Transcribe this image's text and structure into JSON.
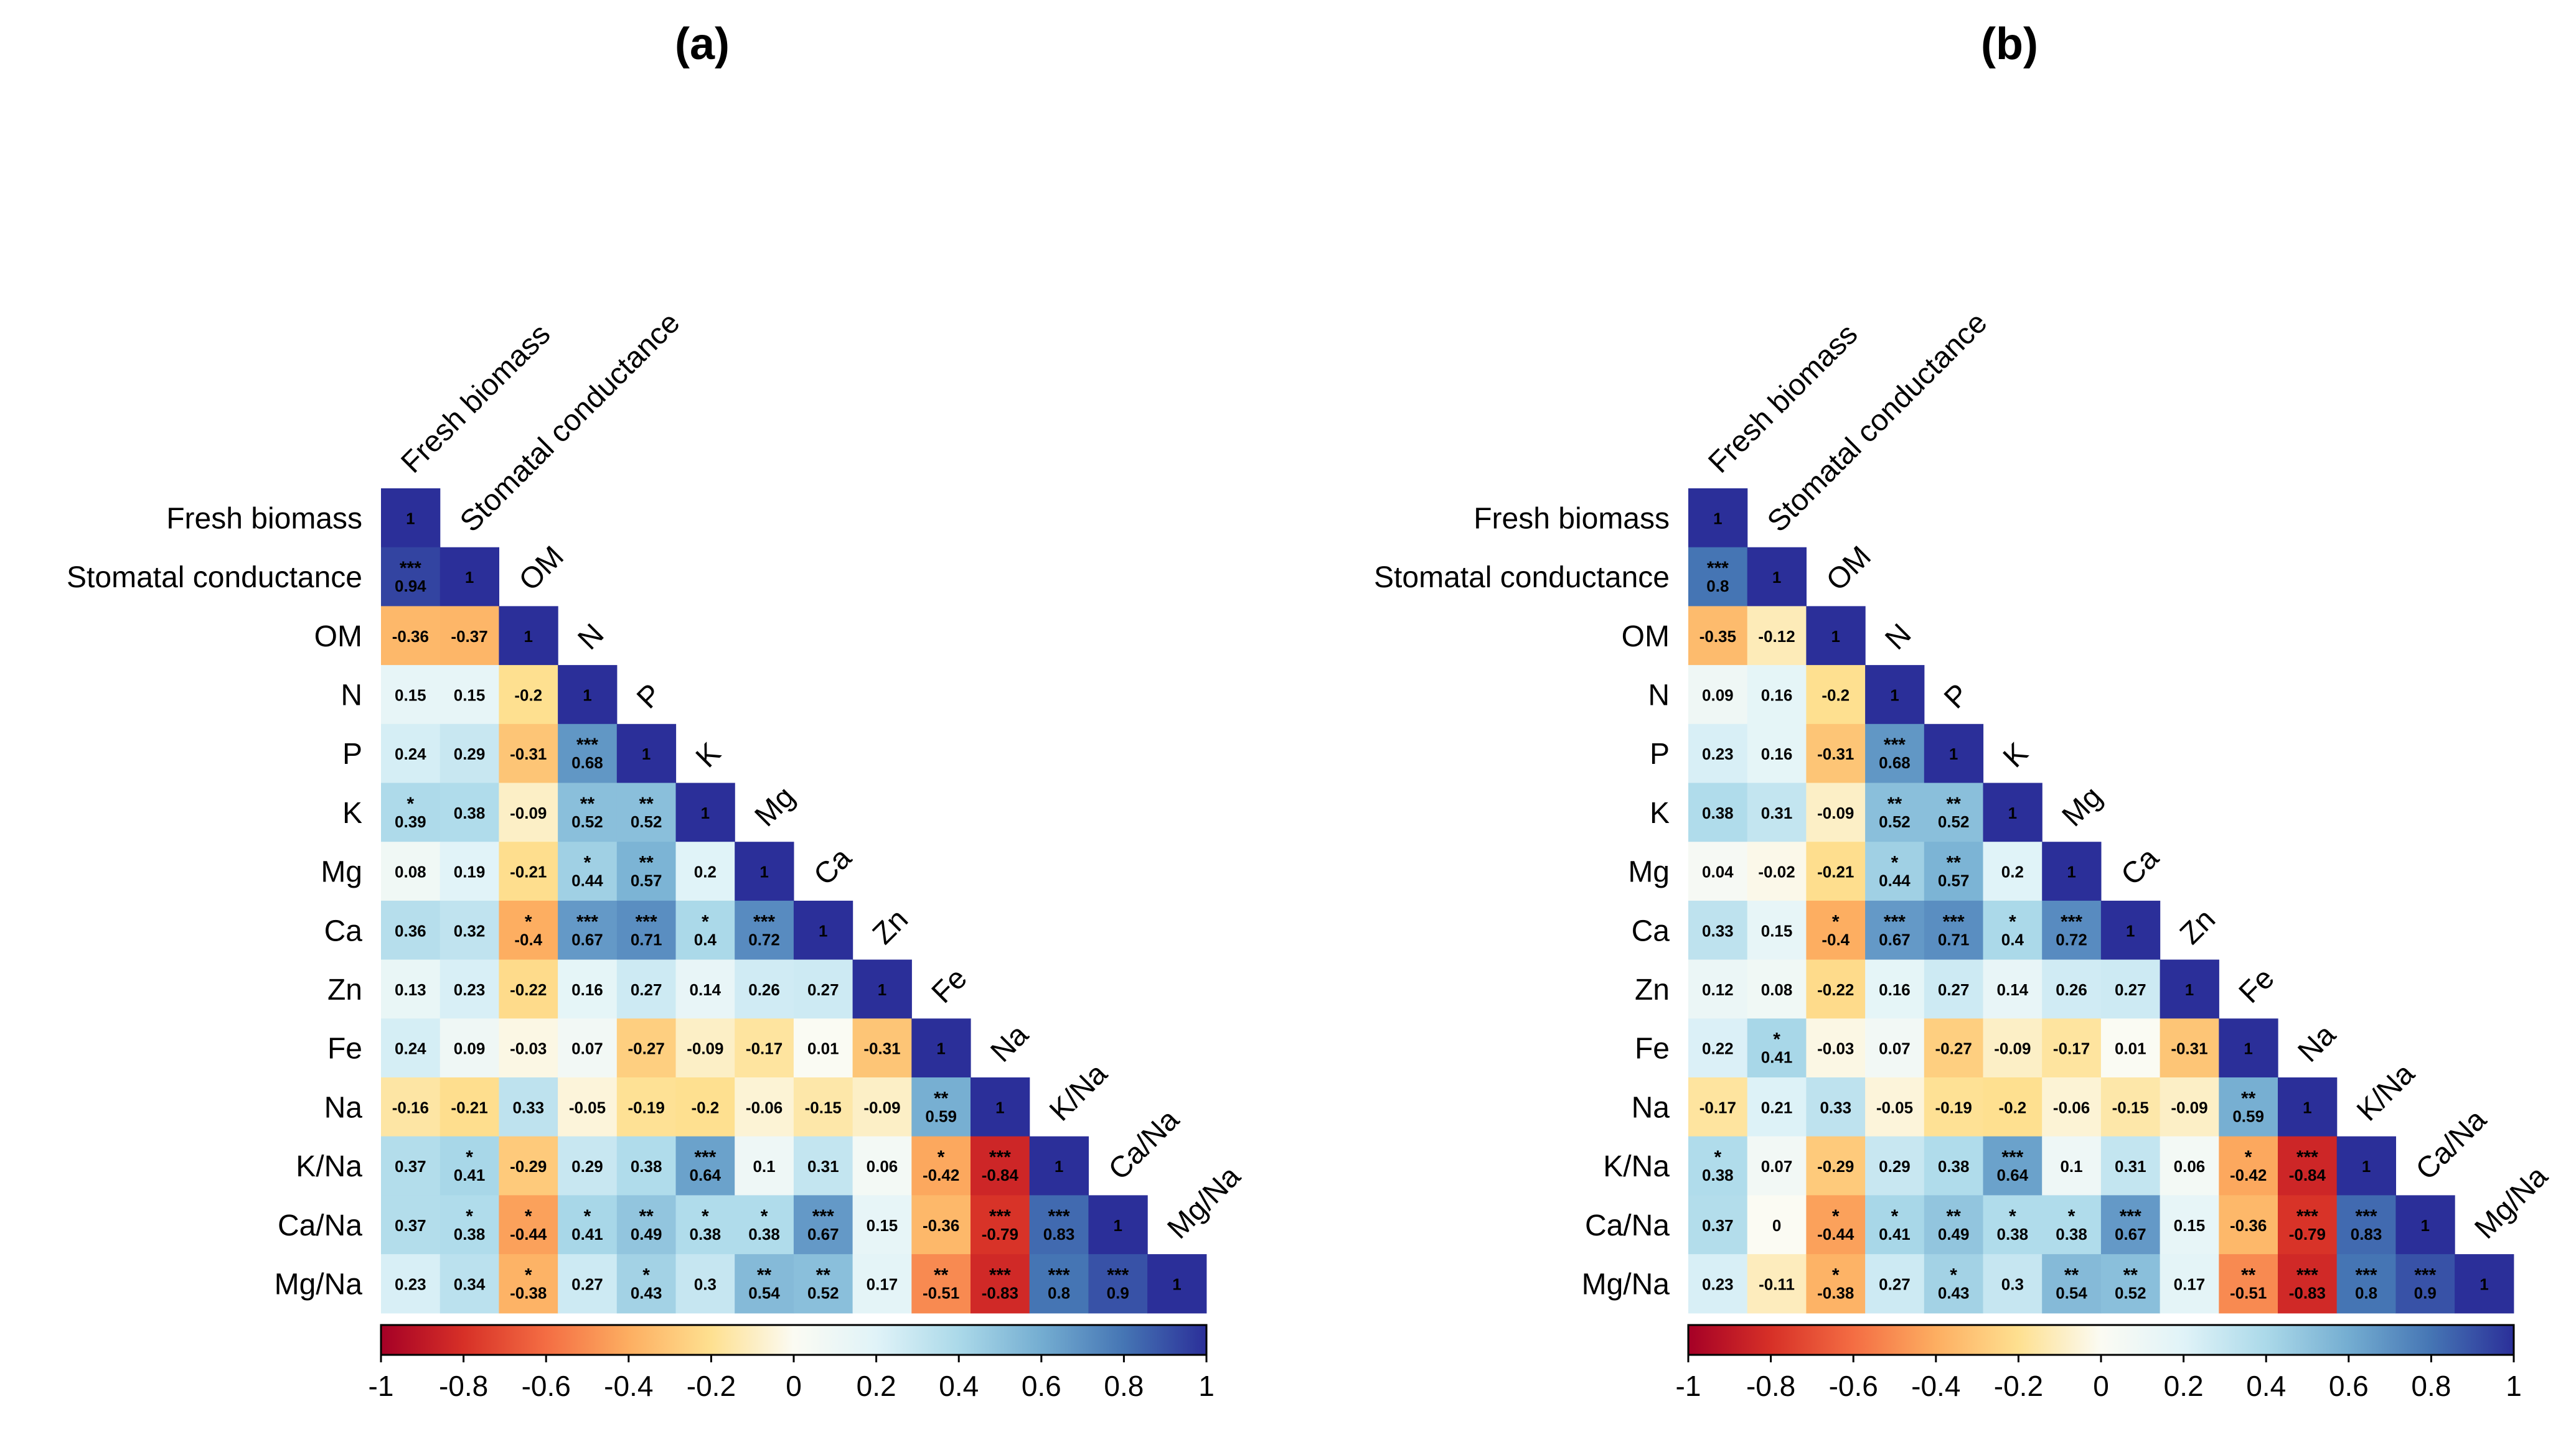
{
  "chart_data": [
    {
      "type": "heatmap",
      "title": "(a)",
      "variables": [
        "Fresh biomass",
        "Stomatal conductance",
        "OM",
        "N",
        "P",
        "K",
        "Mg",
        "Ca",
        "Zn",
        "Fe",
        "Na",
        "K/Na",
        "Ca/Na",
        "Mg/Na"
      ],
      "values": [
        [
          "1"
        ],
        [
          "0.94",
          "1"
        ],
        [
          "-0.36",
          "-0.37",
          "1"
        ],
        [
          "0.15",
          "0.15",
          "-0.2",
          "1"
        ],
        [
          "0.24",
          "0.29",
          "-0.31",
          "0.68",
          "1"
        ],
        [
          "0.39",
          "0.38",
          "-0.09",
          "0.52",
          "0.52",
          "1"
        ],
        [
          "0.08",
          "0.19",
          "-0.21",
          "0.44",
          "0.57",
          "0.2",
          "1"
        ],
        [
          "0.36",
          "0.32",
          "-0.4",
          "0.67",
          "0.71",
          "0.4",
          "0.72",
          "1"
        ],
        [
          "0.13",
          "0.23",
          "-0.22",
          "0.16",
          "0.27",
          "0.14",
          "0.26",
          "0.27",
          "1"
        ],
        [
          "0.24",
          "0.09",
          "-0.03",
          "0.07",
          "-0.27",
          "-0.09",
          "-0.17",
          "0.01",
          "-0.31",
          "1"
        ],
        [
          "-0.16",
          "-0.21",
          "0.33",
          "-0.05",
          "-0.19",
          "-0.2",
          "-0.06",
          "-0.15",
          "-0.09",
          "0.59",
          "1"
        ],
        [
          "0.37",
          "0.41",
          "-0.29",
          "0.29",
          "0.38",
          "0.64",
          "0.1",
          "0.31",
          "0.06",
          "-0.42",
          "-0.84",
          "1"
        ],
        [
          "0.37",
          "0.38",
          "-0.44",
          "0.41",
          "0.49",
          "0.38",
          "0.38",
          "0.67",
          "0.15",
          "-0.36",
          "-0.79",
          "0.83",
          "1"
        ],
        [
          "0.23",
          "0.34",
          "-0.38",
          "0.27",
          "0.43",
          "0.3",
          "0.54",
          "0.52",
          "0.17",
          "-0.51",
          "-0.83",
          "0.8",
          "0.9",
          "1"
        ]
      ],
      "significance": [
        [
          ""
        ],
        [
          "***",
          ""
        ],
        [
          "",
          "",
          ""
        ],
        [
          "",
          "",
          "",
          ""
        ],
        [
          "",
          "",
          "",
          "***",
          ""
        ],
        [
          "*",
          "",
          "",
          "**",
          "**",
          ""
        ],
        [
          "",
          "",
          "",
          "*",
          "**",
          "",
          ""
        ],
        [
          "",
          "",
          "*",
          "***",
          "***",
          "*",
          "***",
          ""
        ],
        [
          "",
          "",
          "",
          "",
          "",
          "",
          "",
          "",
          ""
        ],
        [
          "",
          "",
          "",
          "",
          "",
          "",
          "",
          "",
          "",
          ""
        ],
        [
          "",
          "",
          "",
          "",
          "",
          "",
          "",
          "",
          "",
          "**",
          ""
        ],
        [
          "",
          "*",
          "",
          "",
          "",
          "***",
          "",
          "",
          "",
          "*",
          "***",
          ""
        ],
        [
          "",
          "*",
          "*",
          "*",
          "**",
          "*",
          "*",
          "***",
          "",
          "",
          "***",
          "***",
          ""
        ],
        [
          "",
          "",
          "*",
          "",
          "*",
          "",
          "**",
          "**",
          "",
          "**",
          "***",
          "***",
          "***",
          ""
        ]
      ],
      "colorbar": {
        "range": [
          -1,
          1
        ],
        "ticks": [
          "-1",
          "-0.8",
          "-0.6",
          "-0.4",
          "-0.2",
          "0",
          "0.2",
          "0.4",
          "0.6",
          "0.8",
          "1"
        ]
      }
    },
    {
      "type": "heatmap",
      "title": "(b)",
      "variables": [
        "Fresh biomass",
        "Stomatal conductance",
        "OM",
        "N",
        "P",
        "K",
        "Mg",
        "Ca",
        "Zn",
        "Fe",
        "Na",
        "K/Na",
        "Ca/Na",
        "Mg/Na"
      ],
      "values": [
        [
          "1"
        ],
        [
          "0.8",
          "1"
        ],
        [
          "-0.35",
          "-0.12",
          "1"
        ],
        [
          "0.09",
          "0.16",
          "-0.2",
          "1"
        ],
        [
          "0.23",
          "0.16",
          "-0.31",
          "0.68",
          "1"
        ],
        [
          "0.38",
          "0.31",
          "-0.09",
          "0.52",
          "0.52",
          "1"
        ],
        [
          "0.04",
          "-0.02",
          "-0.21",
          "0.44",
          "0.57",
          "0.2",
          "1"
        ],
        [
          "0.33",
          "0.15",
          "-0.4",
          "0.67",
          "0.71",
          "0.4",
          "0.72",
          "1"
        ],
        [
          "0.12",
          "0.08",
          "-0.22",
          "0.16",
          "0.27",
          "0.14",
          "0.26",
          "0.27",
          "1"
        ],
        [
          "0.22",
          "0.41",
          "-0.03",
          "0.07",
          "-0.27",
          "-0.09",
          "-0.17",
          "0.01",
          "-0.31",
          "1"
        ],
        [
          "-0.17",
          "0.21",
          "0.33",
          "-0.05",
          "-0.19",
          "-0.2",
          "-0.06",
          "-0.15",
          "-0.09",
          "0.59",
          "1"
        ],
        [
          "0.38",
          "0.07",
          "-0.29",
          "0.29",
          "0.38",
          "0.64",
          "0.1",
          "0.31",
          "0.06",
          "-0.42",
          "-0.84",
          "1"
        ],
        [
          "0.37",
          "0",
          "-0.44",
          "0.41",
          "0.49",
          "0.38",
          "0.38",
          "0.67",
          "0.15",
          "-0.36",
          "-0.79",
          "0.83",
          "1"
        ],
        [
          "0.23",
          "-0.11",
          "-0.38",
          "0.27",
          "0.43",
          "0.3",
          "0.54",
          "0.52",
          "0.17",
          "-0.51",
          "-0.83",
          "0.8",
          "0.9",
          "1"
        ]
      ],
      "significance": [
        [
          ""
        ],
        [
          "***",
          ""
        ],
        [
          "",
          "",
          ""
        ],
        [
          "",
          "",
          "",
          ""
        ],
        [
          "",
          "",
          "",
          "***",
          ""
        ],
        [
          "",
          "",
          "",
          "**",
          "**",
          ""
        ],
        [
          "",
          "",
          "",
          "*",
          "**",
          "",
          ""
        ],
        [
          "",
          "",
          "*",
          "***",
          "***",
          "*",
          "***",
          ""
        ],
        [
          "",
          "",
          "",
          "",
          "",
          "",
          "",
          "",
          ""
        ],
        [
          "",
          "*",
          "",
          "",
          "",
          "",
          "",
          "",
          "",
          ""
        ],
        [
          "",
          "",
          "",
          "",
          "",
          "",
          "",
          "",
          "",
          "**",
          ""
        ],
        [
          "*",
          "",
          "",
          "",
          "",
          "***",
          "",
          "",
          "",
          "*",
          "***",
          ""
        ],
        [
          "",
          "",
          "*",
          "*",
          "**",
          "*",
          "*",
          "***",
          "",
          "",
          "***",
          "***",
          ""
        ],
        [
          "",
          "",
          "*",
          "",
          "*",
          "",
          "**",
          "**",
          "",
          "**",
          "***",
          "***",
          "***",
          ""
        ]
      ],
      "colorbar": {
        "range": [
          -1,
          1
        ],
        "ticks": [
          "-1",
          "-0.8",
          "-0.6",
          "-0.4",
          "-0.2",
          "0",
          "0.2",
          "0.4",
          "0.6",
          "0.8",
          "1"
        ]
      }
    }
  ],
  "colors": {
    "scale": [
      "#a50026",
      "#d73027",
      "#f46d43",
      "#fdae61",
      "#fee090",
      "#fbfbf3",
      "#e0f3f8",
      "#abd9e9",
      "#74add1",
      "#4575b4",
      "#2b2f99"
    ],
    "text": "#000000",
    "border": "#000000"
  }
}
